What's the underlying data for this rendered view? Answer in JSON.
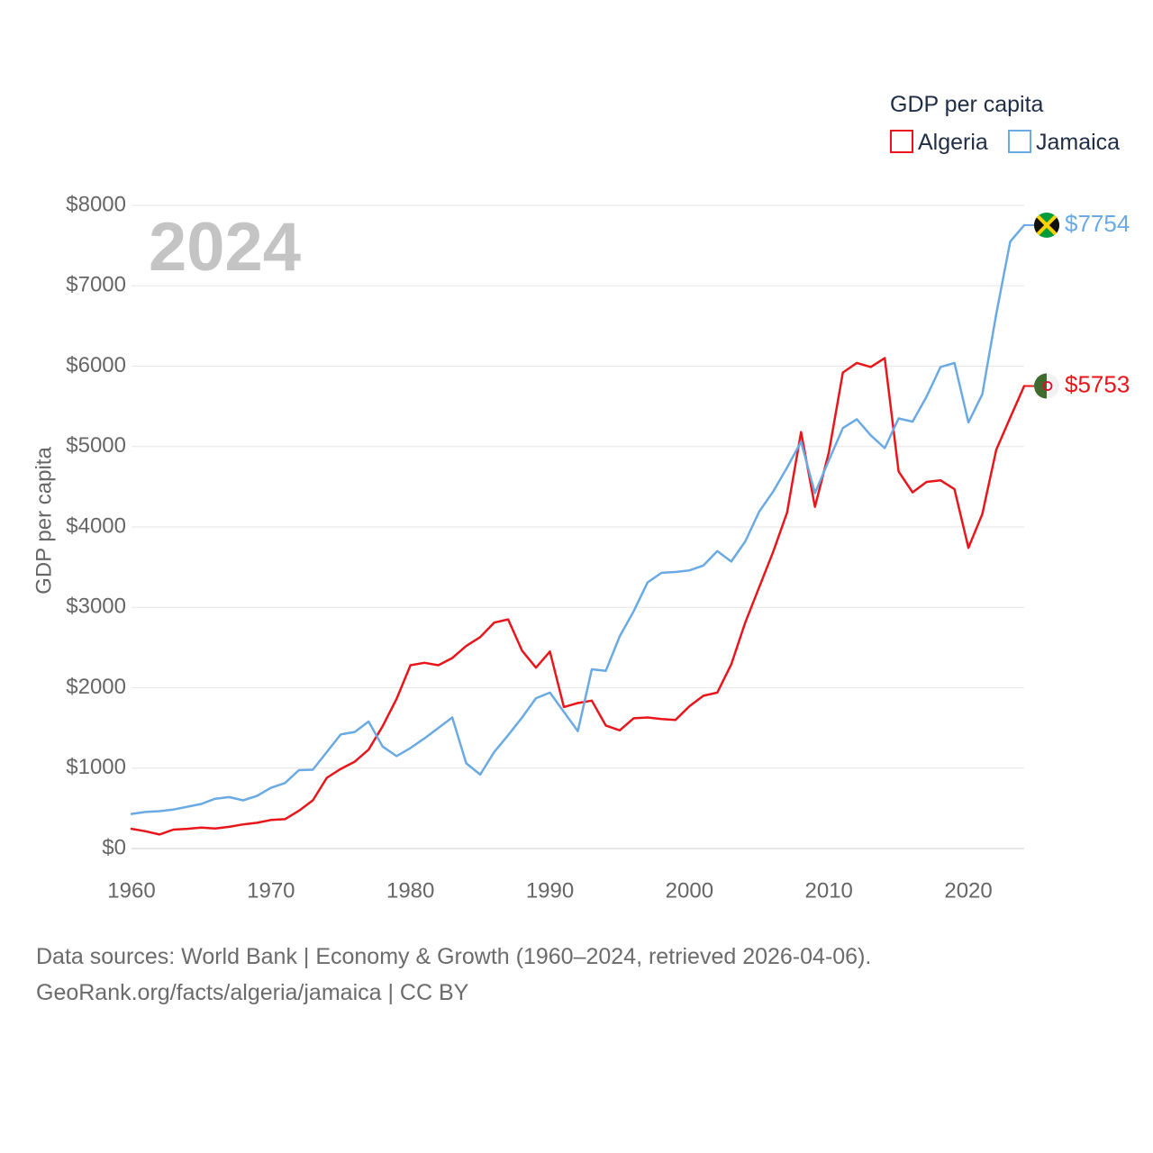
{
  "chart_data": {
    "type": "line",
    "year_label": "2024",
    "legend_title": "GDP per capita",
    "ylabel": "GDP per capita",
    "xlabel": "",
    "xlim": [
      1960,
      2024
    ],
    "ylim": [
      0,
      8000
    ],
    "x_ticks": [
      1960,
      1970,
      1980,
      1990,
      2000,
      2010,
      2020
    ],
    "x_tick_labels": [
      "1960",
      "1970",
      "1980",
      "1990",
      "2000",
      "2010",
      "2020"
    ],
    "y_ticks": [
      0,
      1000,
      2000,
      3000,
      4000,
      5000,
      6000,
      7000,
      8000
    ],
    "y_tick_labels": [
      "$0",
      "$1000",
      "$2000",
      "$3000",
      "$4000",
      "$5000",
      "$6000",
      "$7000",
      "$8000"
    ],
    "grid": true,
    "legend_position": "top-right",
    "series": [
      {
        "name": "Algeria",
        "color": "#e8161b",
        "end_label": "$5753",
        "flag_icon": "algeria-flag-icon",
        "x": [
          1960,
          1961,
          1962,
          1963,
          1964,
          1965,
          1966,
          1967,
          1968,
          1969,
          1970,
          1971,
          1972,
          1973,
          1974,
          1975,
          1976,
          1977,
          1978,
          1979,
          1980,
          1981,
          1982,
          1983,
          1984,
          1985,
          1986,
          1987,
          1988,
          1989,
          1990,
          1991,
          1992,
          1993,
          1994,
          1995,
          1996,
          1997,
          1998,
          1999,
          2000,
          2001,
          2002,
          2003,
          2004,
          2005,
          2006,
          2007,
          2008,
          2009,
          2010,
          2011,
          2012,
          2013,
          2014,
          2015,
          2016,
          2017,
          2018,
          2019,
          2020,
          2021,
          2022,
          2023,
          2024
        ],
        "values": [
          245,
          215,
          175,
          235,
          245,
          260,
          250,
          270,
          300,
          320,
          355,
          365,
          470,
          600,
          880,
          990,
          1080,
          1230,
          1520,
          1860,
          2280,
          2310,
          2280,
          2370,
          2520,
          2630,
          2810,
          2850,
          2460,
          2250,
          2450,
          1760,
          1810,
          1840,
          1530,
          1470,
          1620,
          1630,
          1610,
          1600,
          1770,
          1900,
          1940,
          2290,
          2810,
          3250,
          3690,
          4180,
          5180,
          4250,
          4930,
          5920,
          6040,
          5990,
          6100,
          4690,
          4430,
          4560,
          4580,
          4470,
          3740,
          4160,
          4960,
          5360,
          5753
        ]
      },
      {
        "name": "Jamaica",
        "color": "#6aaae4",
        "end_label": "$7754",
        "flag_icon": "jamaica-flag-icon",
        "x": [
          1960,
          1961,
          1962,
          1963,
          1964,
          1965,
          1966,
          1967,
          1968,
          1969,
          1970,
          1971,
          1972,
          1973,
          1974,
          1975,
          1976,
          1977,
          1978,
          1979,
          1980,
          1981,
          1982,
          1983,
          1984,
          1985,
          1986,
          1987,
          1988,
          1989,
          1990,
          1991,
          1992,
          1993,
          1994,
          1995,
          1996,
          1997,
          1998,
          1999,
          2000,
          2001,
          2002,
          2003,
          2004,
          2005,
          2006,
          2007,
          2008,
          2009,
          2010,
          2011,
          2012,
          2013,
          2014,
          2015,
          2016,
          2017,
          2018,
          2019,
          2020,
          2021,
          2022,
          2023,
          2024
        ],
        "values": [
          430,
          455,
          465,
          485,
          520,
          555,
          620,
          640,
          600,
          655,
          755,
          815,
          975,
          980,
          1200,
          1420,
          1450,
          1580,
          1270,
          1150,
          1250,
          1370,
          1500,
          1630,
          1060,
          920,
          1200,
          1410,
          1630,
          1870,
          1940,
          1700,
          1460,
          2230,
          2210,
          2640,
          2950,
          3310,
          3430,
          3440,
          3460,
          3520,
          3700,
          3570,
          3820,
          4190,
          4440,
          4740,
          5060,
          4420,
          4830,
          5230,
          5340,
          5140,
          4980,
          5350,
          5310,
          5620,
          5990,
          6040,
          5300,
          5650,
          6650,
          7550,
          7754
        ]
      }
    ]
  },
  "footer": {
    "line1": "Data sources: World Bank | Economy & Growth (1960–2024, retrieved 2026-04-06).",
    "line2": "GeoRank.org/facts/algeria/jamaica | CC BY"
  }
}
